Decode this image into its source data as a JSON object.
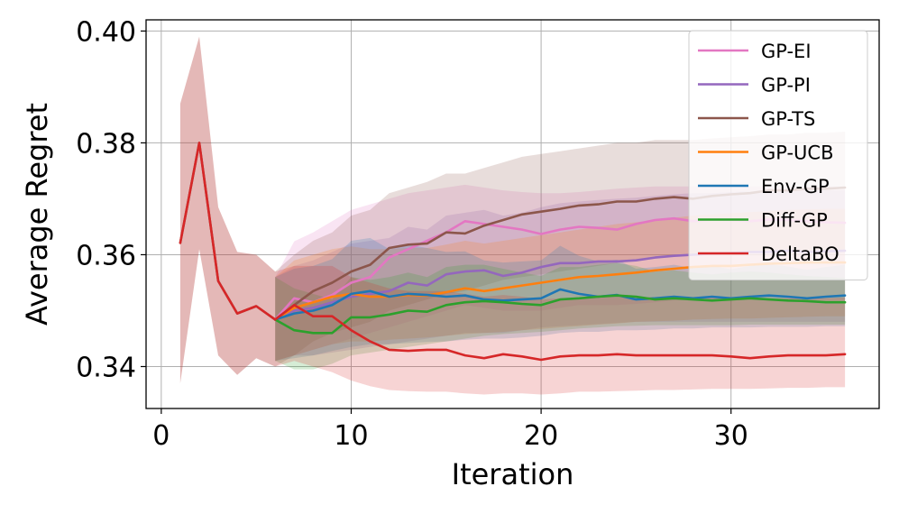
{
  "chart_data": {
    "type": "line",
    "title": "",
    "xlabel": "Iteration",
    "ylabel": "Average Regret",
    "xlim": [
      -0.8,
      37.8
    ],
    "ylim": [
      0.3325,
      0.402
    ],
    "xticks": [
      0,
      10,
      20,
      30
    ],
    "xtick_labels": [
      "0",
      "10",
      "20",
      "30"
    ],
    "yticks": [
      0.34,
      0.36,
      0.38,
      0.4
    ],
    "ytick_labels": [
      "0.34",
      "0.36",
      "0.38",
      "0.40"
    ],
    "grid": true,
    "legend_position": "top-right",
    "legend": [
      "GP-EI",
      "GP-PI",
      "GP-TS",
      "GP-UCB",
      "Env-GP",
      "Diff-GP",
      "DeltaBO"
    ],
    "series": [
      {
        "name": "GP-EI",
        "color": "#e377c2",
        "x": [
          6,
          7,
          8,
          9,
          10,
          11,
          12,
          13,
          14,
          15,
          16,
          17,
          18,
          19,
          20,
          21,
          22,
          23,
          24,
          25,
          26,
          27,
          28,
          29,
          30,
          31,
          32,
          33,
          34,
          35,
          36
        ],
        "y": [
          0.3484,
          0.3522,
          0.3515,
          0.3528,
          0.355,
          0.356,
          0.3595,
          0.361,
          0.3625,
          0.364,
          0.366,
          0.3655,
          0.365,
          0.3645,
          0.3637,
          0.3645,
          0.365,
          0.3648,
          0.3645,
          0.3655,
          0.3662,
          0.3665,
          0.366,
          0.3663,
          0.3662,
          0.366,
          0.3663,
          0.3662,
          0.366,
          0.3658,
          0.3657
        ],
        "lower": [
          0.341,
          0.342,
          0.343,
          0.344,
          0.345,
          0.346,
          0.347,
          0.348,
          0.349,
          0.35,
          0.351,
          0.3505,
          0.35,
          0.35,
          0.35,
          0.3505,
          0.351,
          0.351,
          0.351,
          0.3512,
          0.3515,
          0.3518,
          0.352,
          0.352,
          0.352,
          0.352,
          0.352,
          0.352,
          0.352,
          0.352,
          0.352
        ],
        "upper": [
          0.356,
          0.3624,
          0.364,
          0.366,
          0.368,
          0.369,
          0.37,
          0.371,
          0.3715,
          0.372,
          0.3725,
          0.372,
          0.3715,
          0.3712,
          0.371,
          0.371,
          0.3712,
          0.3715,
          0.3718,
          0.372,
          0.3722,
          0.3722,
          0.3722,
          0.3722,
          0.3722,
          0.3722,
          0.3722,
          0.3722,
          0.3722,
          0.3722,
          0.3722
        ]
      },
      {
        "name": "GP-PI",
        "color": "#9467bd",
        "x": [
          6,
          7,
          8,
          9,
          10,
          11,
          12,
          13,
          14,
          15,
          16,
          17,
          18,
          19,
          20,
          21,
          22,
          23,
          24,
          25,
          26,
          27,
          28,
          29,
          30,
          31,
          32,
          33,
          34,
          35,
          36
        ],
        "y": [
          0.3484,
          0.35,
          0.3505,
          0.3515,
          0.3525,
          0.353,
          0.3535,
          0.355,
          0.3545,
          0.3565,
          0.357,
          0.3572,
          0.3562,
          0.3568,
          0.3578,
          0.3585,
          0.3585,
          0.3588,
          0.3588,
          0.359,
          0.3595,
          0.3598,
          0.36,
          0.3602,
          0.3603,
          0.3605,
          0.3605,
          0.3607,
          0.3605,
          0.3606,
          0.3607
        ],
        "lower": [
          0.341,
          0.342,
          0.342,
          0.3425,
          0.343,
          0.3435,
          0.344,
          0.3445,
          0.345,
          0.3455,
          0.346,
          0.346,
          0.346,
          0.3465,
          0.347,
          0.3472,
          0.3474,
          0.3476,
          0.3478,
          0.348,
          0.348,
          0.348,
          0.348,
          0.348,
          0.348,
          0.348,
          0.348,
          0.348,
          0.348,
          0.348,
          0.348
        ],
        "upper": [
          0.356,
          0.358,
          0.359,
          0.3605,
          0.362,
          0.3625,
          0.363,
          0.365,
          0.3645,
          0.367,
          0.3675,
          0.368,
          0.367,
          0.3675,
          0.3685,
          0.3692,
          0.3695,
          0.3698,
          0.37,
          0.3702,
          0.3705,
          0.3708,
          0.371,
          0.371,
          0.3712,
          0.3713,
          0.3714,
          0.3715,
          0.3715,
          0.3715,
          0.3715
        ]
      },
      {
        "name": "GP-TS",
        "color": "#8c564b",
        "x": [
          1,
          2,
          3,
          4,
          5,
          6,
          7,
          8,
          9,
          10,
          11,
          12,
          13,
          14,
          15,
          16,
          17,
          18,
          19,
          20,
          21,
          22,
          23,
          24,
          25,
          26,
          27,
          28,
          29,
          30,
          31,
          32,
          33,
          34,
          35,
          36
        ],
        "y": [
          0.3621,
          0.38,
          0.3553,
          0.3495,
          0.3508,
          0.3484,
          0.351,
          0.3535,
          0.355,
          0.357,
          0.3582,
          0.3612,
          0.3618,
          0.362,
          0.364,
          0.3638,
          0.3652,
          0.3662,
          0.3672,
          0.3677,
          0.3682,
          0.3688,
          0.369,
          0.3695,
          0.3695,
          0.37,
          0.3703,
          0.37,
          0.3705,
          0.3708,
          0.371,
          0.3715,
          0.3715,
          0.3718,
          0.3718,
          0.372
        ],
        "lower": [
          0.337,
          0.361,
          0.342,
          0.3385,
          0.3415,
          0.34,
          0.342,
          0.3445,
          0.346,
          0.347,
          0.348,
          0.35,
          0.351,
          0.352,
          0.353,
          0.3535,
          0.3545,
          0.3555,
          0.356,
          0.3565,
          0.357,
          0.3575,
          0.358,
          0.3585,
          0.359,
          0.3595,
          0.3598,
          0.36,
          0.36,
          0.3602,
          0.3603,
          0.3604,
          0.3605,
          0.3606,
          0.3607,
          0.3608
        ],
        "upper": [
          0.387,
          0.399,
          0.3685,
          0.3605,
          0.36,
          0.357,
          0.36,
          0.3625,
          0.364,
          0.367,
          0.368,
          0.371,
          0.372,
          0.373,
          0.3745,
          0.3745,
          0.3755,
          0.3765,
          0.3775,
          0.378,
          0.3785,
          0.379,
          0.3795,
          0.38,
          0.38,
          0.3805,
          0.3805,
          0.3805,
          0.3808,
          0.381,
          0.3812,
          0.3815,
          0.3815,
          0.3818,
          0.3818,
          0.382
        ]
      },
      {
        "name": "GP-UCB",
        "color": "#ff7f0e",
        "x": [
          6,
          7,
          8,
          9,
          10,
          11,
          12,
          13,
          14,
          15,
          16,
          17,
          18,
          19,
          20,
          21,
          22,
          23,
          24,
          25,
          26,
          27,
          28,
          29,
          30,
          31,
          32,
          33,
          34,
          35,
          36
        ],
        "y": [
          0.3484,
          0.3505,
          0.3515,
          0.3525,
          0.353,
          0.3525,
          0.3525,
          0.3528,
          0.3527,
          0.3533,
          0.354,
          0.3535,
          0.354,
          0.3545,
          0.355,
          0.3555,
          0.356,
          0.3562,
          0.3565,
          0.3568,
          0.3572,
          0.3575,
          0.3578,
          0.358,
          0.358,
          0.3582,
          0.3584,
          0.3585,
          0.3586,
          0.3586,
          0.3586
        ],
        "lower": [
          0.341,
          0.342,
          0.343,
          0.344,
          0.3445,
          0.3445,
          0.3448,
          0.345,
          0.3452,
          0.3455,
          0.3458,
          0.346,
          0.3462,
          0.3465,
          0.3467,
          0.347,
          0.3472,
          0.3475,
          0.3477,
          0.348,
          0.3481,
          0.3482,
          0.3484,
          0.3485,
          0.3486,
          0.3486,
          0.3487,
          0.3488,
          0.3489,
          0.349,
          0.349
        ],
        "upper": [
          0.356,
          0.359,
          0.36,
          0.361,
          0.3615,
          0.361,
          0.361,
          0.3612,
          0.3612,
          0.3618,
          0.3625,
          0.362,
          0.3625,
          0.363,
          0.3635,
          0.364,
          0.3645,
          0.365,
          0.3655,
          0.3658,
          0.3662,
          0.3666,
          0.367,
          0.3672,
          0.3674,
          0.3676,
          0.3678,
          0.368,
          0.3681,
          0.3682,
          0.3682
        ]
      },
      {
        "name": "Env-GP",
        "color": "#1f77b4",
        "x": [
          6,
          7,
          8,
          9,
          10,
          11,
          12,
          13,
          14,
          15,
          16,
          17,
          18,
          19,
          20,
          21,
          22,
          23,
          24,
          25,
          26,
          27,
          28,
          29,
          30,
          31,
          32,
          33,
          34,
          35,
          36
        ],
        "y": [
          0.3484,
          0.3495,
          0.35,
          0.351,
          0.353,
          0.3535,
          0.3525,
          0.353,
          0.3528,
          0.3525,
          0.3527,
          0.352,
          0.3518,
          0.352,
          0.3522,
          0.3538,
          0.353,
          0.3525,
          0.3528,
          0.352,
          0.3522,
          0.3525,
          0.3522,
          0.3525,
          0.3522,
          0.3525,
          0.3527,
          0.3525,
          0.3522,
          0.3525,
          0.3527
        ],
        "lower": [
          0.341,
          0.3415,
          0.342,
          0.3428,
          0.3435,
          0.344,
          0.344,
          0.3442,
          0.3444,
          0.3445,
          0.3448,
          0.345,
          0.345,
          0.3452,
          0.3455,
          0.346,
          0.3462,
          0.3462,
          0.3465,
          0.3465,
          0.3466,
          0.3468,
          0.3468,
          0.347,
          0.347,
          0.347,
          0.3471,
          0.3471,
          0.3471,
          0.3472,
          0.3472
        ],
        "upper": [
          0.356,
          0.3575,
          0.358,
          0.3592,
          0.3625,
          0.363,
          0.361,
          0.3618,
          0.3612,
          0.3605,
          0.3606,
          0.359,
          0.3586,
          0.3588,
          0.359,
          0.3616,
          0.3598,
          0.3588,
          0.3591,
          0.3575,
          0.3578,
          0.3582,
          0.3576,
          0.358,
          0.3574,
          0.358,
          0.3583,
          0.3579,
          0.3573,
          0.3578,
          0.3582
        ]
      },
      {
        "name": "Diff-GP",
        "color": "#2ca02c",
        "x": [
          6,
          7,
          8,
          9,
          10,
          11,
          12,
          13,
          14,
          15,
          16,
          17,
          18,
          19,
          20,
          21,
          22,
          23,
          24,
          25,
          26,
          27,
          28,
          29,
          30,
          31,
          32,
          33,
          34,
          35,
          36
        ],
        "y": [
          0.3484,
          0.3465,
          0.346,
          0.346,
          0.3488,
          0.3488,
          0.3493,
          0.35,
          0.3498,
          0.351,
          0.3515,
          0.3517,
          0.3515,
          0.3512,
          0.351,
          0.352,
          0.3522,
          0.3525,
          0.3527,
          0.3525,
          0.352,
          0.3522,
          0.352,
          0.3518,
          0.352,
          0.3522,
          0.352,
          0.3518,
          0.3517,
          0.3515,
          0.3515
        ],
        "lower": [
          0.341,
          0.3395,
          0.3395,
          0.3405,
          0.342,
          0.3425,
          0.343,
          0.3435,
          0.344,
          0.3445,
          0.345,
          0.3455,
          0.3458,
          0.346,
          0.3462,
          0.3465,
          0.3468,
          0.347,
          0.3472,
          0.3473,
          0.3474,
          0.3474,
          0.3474,
          0.3474,
          0.3474,
          0.3475,
          0.3475,
          0.3475,
          0.3475,
          0.3475,
          0.3475
        ],
        "upper": [
          0.356,
          0.354,
          0.353,
          0.352,
          0.356,
          0.3555,
          0.356,
          0.3568,
          0.356,
          0.3578,
          0.3582,
          0.3582,
          0.3575,
          0.3568,
          0.3562,
          0.3578,
          0.3578,
          0.3582,
          0.3585,
          0.358,
          0.357,
          0.3572,
          0.3568,
          0.3565,
          0.3568,
          0.357,
          0.3568,
          0.3565,
          0.3562,
          0.356,
          0.3558
        ]
      },
      {
        "name": "DeltaBO",
        "color": "#d62728",
        "x": [
          1,
          2,
          3,
          4,
          5,
          6,
          7,
          8,
          9,
          10,
          11,
          12,
          13,
          14,
          15,
          16,
          17,
          18,
          19,
          20,
          21,
          22,
          23,
          24,
          25,
          26,
          27,
          28,
          29,
          30,
          31,
          32,
          33,
          34,
          35,
          36
        ],
        "y": [
          0.3621,
          0.38,
          0.3553,
          0.3495,
          0.3508,
          0.3484,
          0.351,
          0.349,
          0.349,
          0.3465,
          0.3445,
          0.343,
          0.3428,
          0.343,
          0.343,
          0.342,
          0.3415,
          0.3422,
          0.3418,
          0.3412,
          0.3418,
          0.342,
          0.342,
          0.3422,
          0.342,
          0.342,
          0.342,
          0.342,
          0.342,
          0.3418,
          0.3415,
          0.3418,
          0.342,
          0.342,
          0.342,
          0.3422
        ],
        "lower": [
          0.337,
          0.361,
          0.342,
          0.3385,
          0.3415,
          0.34,
          0.341,
          0.34,
          0.339,
          0.3375,
          0.3365,
          0.3358,
          0.3356,
          0.3355,
          0.3355,
          0.3352,
          0.335,
          0.3352,
          0.3352,
          0.335,
          0.3352,
          0.3355,
          0.3355,
          0.3356,
          0.3357,
          0.3358,
          0.3358,
          0.3359,
          0.336,
          0.336,
          0.336,
          0.3361,
          0.3362,
          0.3362,
          0.3363,
          0.3363
        ],
        "upper": [
          0.387,
          0.399,
          0.3685,
          0.3605,
          0.36,
          0.357,
          0.358,
          0.358,
          0.358,
          0.356,
          0.355,
          0.354,
          0.3535,
          0.3535,
          0.3535,
          0.353,
          0.3525,
          0.3528,
          0.3525,
          0.352,
          0.3522,
          0.3524,
          0.3524,
          0.3525,
          0.3524,
          0.3524,
          0.3524,
          0.3524,
          0.3523,
          0.3522,
          0.352,
          0.3521,
          0.3522,
          0.3522,
          0.3522,
          0.3523
        ]
      }
    ]
  }
}
